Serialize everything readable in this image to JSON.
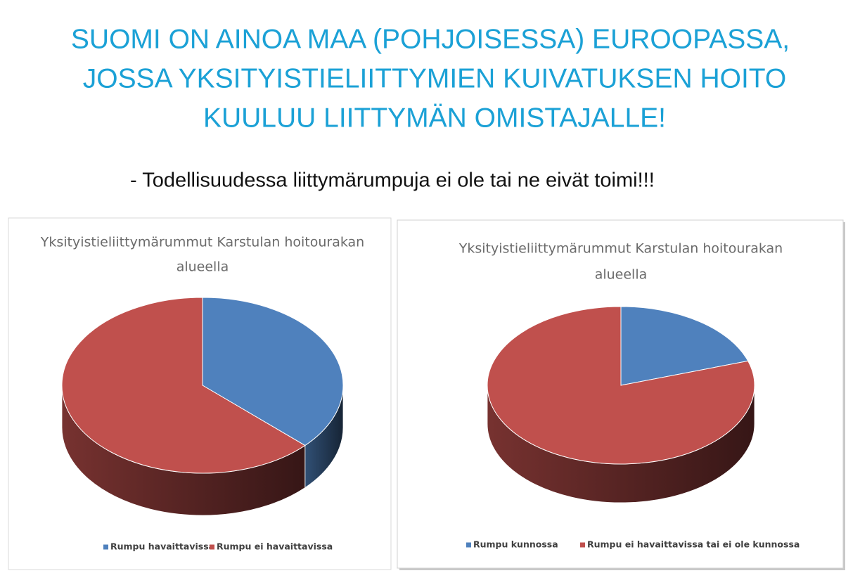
{
  "slide": {
    "title_lines": [
      "SUOMI ON AINOA MAA (POHJOISESSA) EUROOPASSA,",
      "JOSSA YKSITYISTIELIITTYMIEN KUIVATUKSEN  HOITO",
      "KUULUU LIITTYMÄN OMISTAJALLE!"
    ],
    "subtitle": "- Todellisuudessa liittymärumpuja ei ole tai ne eivät toimi!!!"
  },
  "chart_data": [
    {
      "type": "pie",
      "title": [
        "Yksityistieliittymärummut Karstulan hoitourakan",
        "alueella"
      ],
      "categories": [
        "Rumpu havaittavissa",
        "Rumpu ei havaittavissa"
      ],
      "values": [
        37,
        63
      ],
      "colors": [
        "#4f81bd",
        "#c0504d"
      ],
      "legend": "bottom"
    },
    {
      "type": "pie",
      "title": [
        "Yksityistieliittymärummut Karstulan hoitourakan",
        "alueella"
      ],
      "categories": [
        "Rumpu kunnossa",
        "Rumpu ei havaittavissa tai ei ole kunnossa"
      ],
      "values": [
        20,
        80
      ],
      "colors": [
        "#4f81bd",
        "#c0504d"
      ],
      "legend": "bottom"
    }
  ]
}
